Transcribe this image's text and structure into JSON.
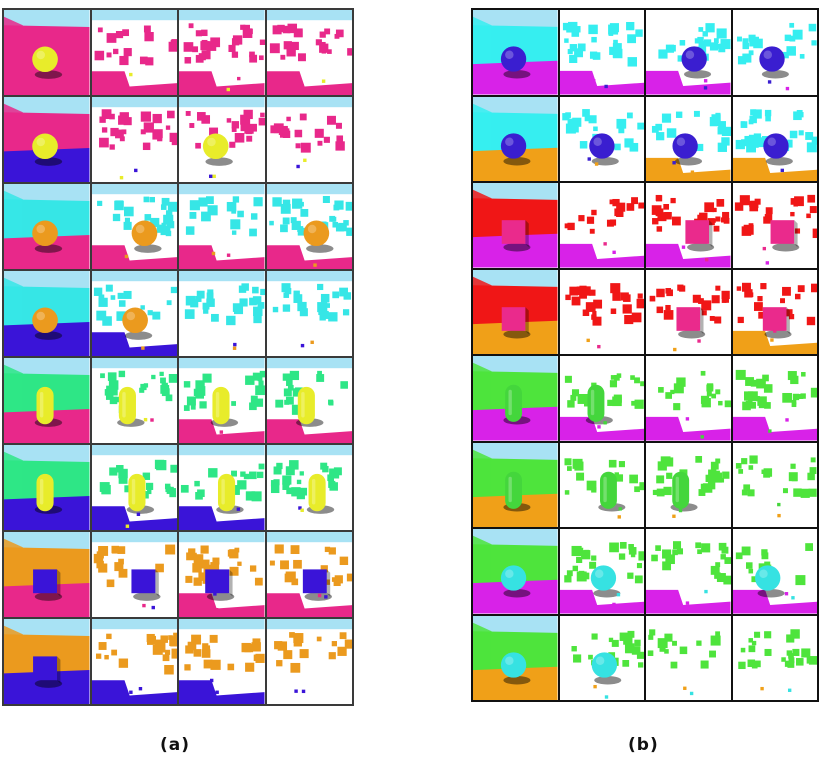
{
  "captions": {
    "a": "(a)",
    "b": "(b)"
  },
  "panels": [
    {
      "id": "a",
      "rows": [
        {
          "shape": "sphere",
          "object": "#e8ec2a",
          "wall": "#e8288a",
          "floor": "#e8288a"
        },
        {
          "shape": "sphere",
          "object": "#e8ec2a",
          "wall": "#e8288a",
          "floor": "#3a14d8"
        },
        {
          "shape": "sphere",
          "object": "#eb9a1e",
          "wall": "#36e6e6",
          "floor": "#e8288a"
        },
        {
          "shape": "sphere",
          "object": "#eb9a1e",
          "wall": "#36e6e6",
          "floor": "#3a14d8"
        },
        {
          "shape": "cylinder",
          "object": "#e8ec2a",
          "wall": "#2ee686",
          "floor": "#e8288a"
        },
        {
          "shape": "cylinder",
          "object": "#e8ec2a",
          "wall": "#2ee686",
          "floor": "#3a14d8"
        },
        {
          "shape": "cube",
          "object": "#3a14d8",
          "wall": "#eb9a1e",
          "floor": "#e8288a"
        },
        {
          "shape": "cube",
          "object": "#3a14d8",
          "wall": "#eb9a1e",
          "floor": "#3a14d8"
        }
      ]
    },
    {
      "id": "b",
      "rows": [
        {
          "shape": "sphere",
          "object": "#3a1ed0",
          "wall": "#36eef0",
          "floor": "#d822e8"
        },
        {
          "shape": "sphere",
          "object": "#3a1ed0",
          "wall": "#36eef0",
          "floor": "#f0a018"
        },
        {
          "shape": "cube",
          "object": "#ea2a8c",
          "wall": "#f01616",
          "floor": "#d822e8"
        },
        {
          "shape": "cube",
          "object": "#ea2a8c",
          "wall": "#f01616",
          "floor": "#f0a018"
        },
        {
          "shape": "cylinder",
          "object": "#44d63c",
          "wall": "#4ee43c",
          "floor": "#d822e8"
        },
        {
          "shape": "cylinder",
          "object": "#44d63c",
          "wall": "#4ee43c",
          "floor": "#f0a018"
        },
        {
          "shape": "sphere",
          "object": "#36e2e2",
          "wall": "#4ee43c",
          "floor": "#d822e8"
        },
        {
          "shape": "sphere",
          "object": "#36e2e2",
          "wall": "#4ee43c",
          "floor": "#f0a018"
        }
      ]
    }
  ],
  "colors": {
    "sky": "#a8e2f4",
    "grid_border": "#3a3a3a",
    "background": "#ffffff"
  }
}
